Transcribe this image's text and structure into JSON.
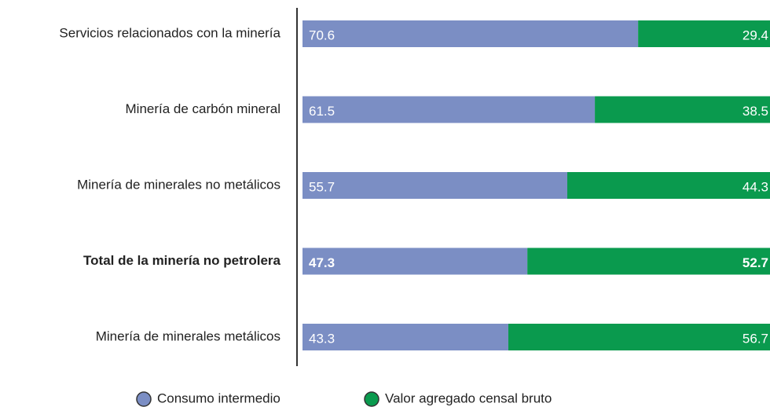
{
  "chart_data": {
    "type": "stacked-bar-horizontal",
    "categories": [
      "Servicios relacionados con la minería",
      "Minería de carbón mineral",
      "Minería de minerales no metálicos",
      "Total de la minería no petrolera",
      "Minería de minerales metálicos"
    ],
    "bold": [
      false,
      false,
      false,
      true,
      false
    ],
    "series": [
      {
        "name": "Consumo intermedio",
        "color": "#7b8ec4",
        "values": [
          70.6,
          61.5,
          55.7,
          47.3,
          43.3
        ]
      },
      {
        "name": "Valor agregado censal bruto",
        "color": "#0a9a4e",
        "values": [
          29.4,
          38.5,
          44.3,
          52.7,
          56.7
        ]
      }
    ],
    "xlim": [
      0,
      100
    ],
    "legend": "bottom"
  }
}
